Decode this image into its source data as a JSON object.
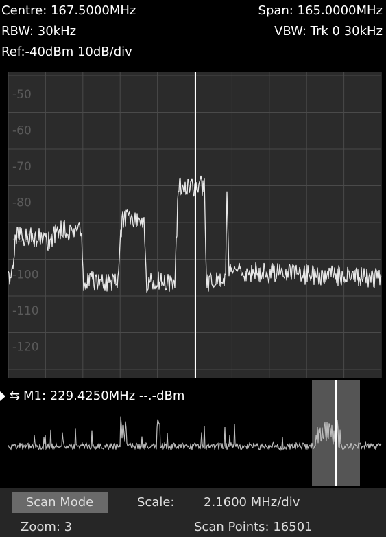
{
  "header": {
    "centre": "Centre: 167.5000MHz",
    "span": "Span: 165.0000MHz",
    "rbw": "RBW: 30kHz",
    "vbw": "VBW: Trk 0 30kHz",
    "ref": "Ref:-40dBm 10dB/div"
  },
  "grid_labels": [
    "-50",
    "-60",
    "-70",
    "-80",
    "-90",
    "-100",
    "-110",
    "-120"
  ],
  "marker": {
    "readout": "M1: 229.4250MHz --.-dBm"
  },
  "footer": {
    "mode_button": "Scan Mode",
    "scale_label": "Scale:",
    "scale_value": "2.1600 MHz/div",
    "zoom": "Zoom: 3",
    "scan_points": "Scan Points: 16501"
  }
}
